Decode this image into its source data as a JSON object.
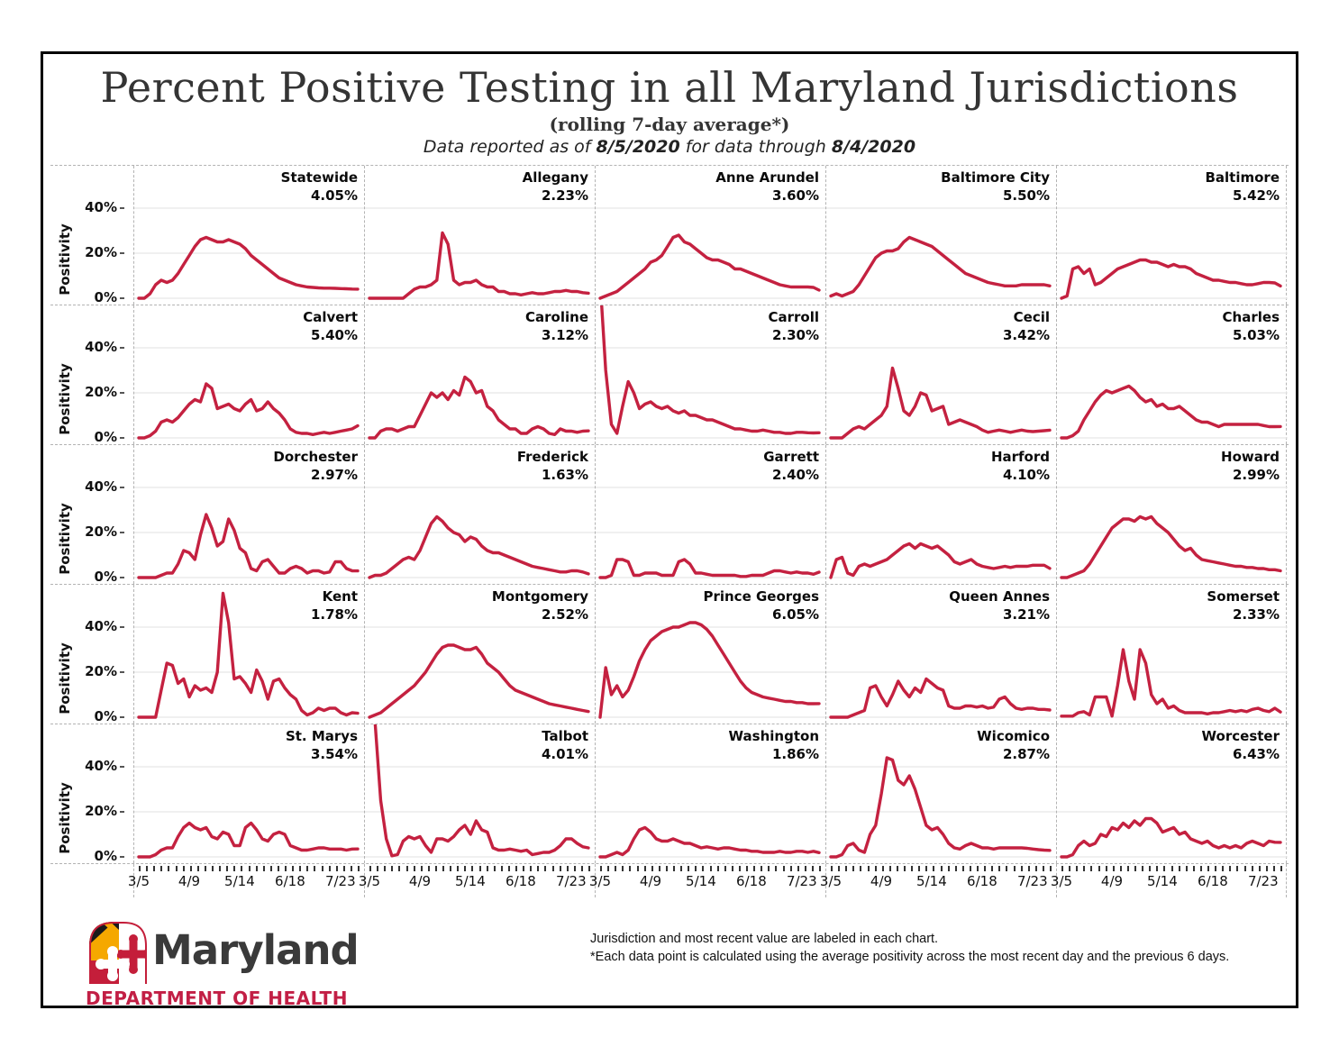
{
  "header": {
    "title": "Percent Positive Testing in all Maryland Jurisdictions",
    "subtitle": "(rolling 7-day average*)",
    "info": {
      "prefix": "Data reported as of ",
      "report_date": "8/5/2020",
      "middle": " for data through ",
      "through_date": "8/4/2020"
    }
  },
  "axis": {
    "y_label": "Positivity",
    "y_ticks": [
      "40%",
      "20%",
      "0%"
    ],
    "x_ticks": [
      "3/5",
      "4/9",
      "5/14",
      "6/18",
      "7/23"
    ]
  },
  "footer": {
    "note1": "Jurisdiction and most recent value are labeled in each chart.",
    "note2": "*Each data point is calculated using the average positivity across the most recent day and the previous 6 days.",
    "logo_name": "Maryland",
    "logo_dept": "DEPARTMENT OF HEALTH"
  },
  "colors": {
    "line": "#C42140",
    "gridline": "#ececec",
    "dashed_border": "#b3b3b3",
    "title_text": "#343434",
    "logo_gold": "#F5A800",
    "logo_red": "#C41E3A",
    "logo_dept_red": "#C21F45"
  },
  "chart_data": {
    "type": "line",
    "title": "Percent Positive Testing in all Maryland Jurisdictions (rolling 7-day average)",
    "ylabel": "Positivity",
    "ylim": [
      0,
      58
    ],
    "y_gridlines_pct": [
      0,
      20,
      40
    ],
    "x_tick_labels": [
      "3/5",
      "4/9",
      "5/14",
      "6/18",
      "7/23"
    ],
    "x_tick_days": [
      0,
      35,
      70,
      105,
      140
    ],
    "x_total_days": 152,
    "minor_ticks": 31,
    "grid_cols": 5,
    "series": [
      {
        "name": "Statewide",
        "value_label": "4.05%",
        "values": [
          0,
          0,
          2,
          6,
          8,
          7,
          8,
          11,
          15,
          19,
          23,
          26,
          27,
          26,
          25,
          25,
          26,
          25,
          24,
          22,
          19,
          17,
          15,
          13,
          11,
          9,
          8,
          7,
          6,
          5.5,
          5,
          4.8,
          4.6,
          4.5,
          4.5,
          4.4,
          4.3,
          4.2,
          4.1,
          4.05
        ]
      },
      {
        "name": "Allegany",
        "value_label": "2.23%",
        "values": [
          0,
          0,
          0,
          0,
          0,
          0,
          0,
          2,
          4,
          5,
          5,
          6,
          8,
          29,
          24,
          8,
          6,
          7,
          7,
          8,
          6,
          5,
          5,
          3,
          3,
          2,
          2,
          1.5,
          2,
          2.5,
          2,
          2,
          2.5,
          3,
          3,
          3.5,
          3,
          3,
          2.5,
          2.23
        ]
      },
      {
        "name": "Anne Arundel",
        "value_label": "3.60%",
        "values": [
          0,
          1,
          2,
          3,
          5,
          7,
          9,
          11,
          13,
          16,
          17,
          19,
          23,
          27,
          28,
          25,
          24,
          22,
          20,
          18,
          17,
          17,
          16,
          15,
          13,
          13,
          12,
          11,
          10,
          9,
          8,
          7,
          6,
          5.5,
          5,
          5,
          5,
          5,
          4.8,
          3.6
        ]
      },
      {
        "name": "Baltimore City",
        "value_label": "5.50%",
        "values": [
          1,
          2,
          1,
          2,
          3,
          6,
          10,
          14,
          18,
          20,
          21,
          21,
          22,
          25,
          27,
          26,
          25,
          24,
          23,
          21,
          19,
          17,
          15,
          13,
          11,
          10,
          9,
          8,
          7,
          6.5,
          6,
          5.5,
          5.5,
          5.5,
          6,
          6,
          6,
          6,
          6,
          5.5
        ]
      },
      {
        "name": "Baltimore",
        "value_label": "5.42%",
        "values": [
          0,
          1,
          13,
          14,
          11,
          13,
          6,
          7,
          9,
          11,
          13,
          14,
          15,
          16,
          17,
          17,
          16,
          16,
          15,
          14,
          15,
          14,
          14,
          13,
          11,
          10,
          9,
          8,
          8,
          7.5,
          7,
          7,
          6.5,
          6,
          6,
          6.5,
          7,
          7,
          6.8,
          5.42
        ]
      },
      {
        "name": "Calvert",
        "value_label": "5.40%",
        "values": [
          0,
          0,
          1,
          3,
          7,
          8,
          7,
          9,
          12,
          15,
          17,
          16,
          24,
          22,
          13,
          14,
          15,
          13,
          12,
          15,
          17,
          12,
          13,
          16,
          13,
          11,
          8,
          4,
          2.5,
          2,
          2,
          1.5,
          2,
          2.5,
          2,
          2.5,
          3,
          3.5,
          4,
          5.4
        ]
      },
      {
        "name": "Caroline",
        "value_label": "3.12%",
        "values": [
          0,
          0,
          3,
          4,
          4,
          3,
          4,
          5,
          5,
          10,
          15,
          20,
          18,
          20,
          17,
          21,
          19,
          27,
          25,
          20,
          21,
          14,
          12,
          8,
          6,
          4,
          4,
          2,
          2,
          4,
          5,
          4,
          2,
          1.5,
          4,
          3,
          3,
          2.5,
          3,
          3.12
        ]
      },
      {
        "name": "Carroll",
        "value_label": "2.30%",
        "values": [
          70,
          30,
          6,
          2,
          14,
          25,
          20,
          13,
          15,
          16,
          14,
          13,
          14,
          12,
          11,
          12,
          10,
          10,
          9,
          8,
          8,
          7,
          6,
          5,
          4,
          4,
          3.5,
          3,
          3,
          3.5,
          3,
          2.5,
          2.5,
          2,
          2,
          2.5,
          2.5,
          2.3,
          2.2,
          2.3
        ]
      },
      {
        "name": "Cecil",
        "value_label": "3.42%",
        "values": [
          0,
          0,
          0,
          2,
          4,
          5,
          4,
          6,
          8,
          10,
          14,
          31,
          22,
          12,
          10,
          14,
          20,
          19,
          12,
          13,
          14,
          6,
          7,
          8,
          7,
          6,
          5,
          3.5,
          2.5,
          3,
          3.5,
          3,
          2.5,
          3,
          3.5,
          3,
          2.8,
          3,
          3.2,
          3.42
        ]
      },
      {
        "name": "Charles",
        "value_label": "5.03%",
        "values": [
          0,
          0,
          1,
          3,
          8,
          12,
          16,
          19,
          21,
          20,
          21,
          22,
          23,
          21,
          18,
          16,
          17,
          14,
          15,
          13,
          13,
          14,
          12,
          10,
          8,
          7,
          7,
          6,
          5,
          6,
          6,
          6,
          6,
          6,
          6,
          6,
          5.5,
          5,
          5,
          5.03
        ]
      },
      {
        "name": "Dorchester",
        "value_label": "2.97%",
        "values": [
          0,
          0,
          0,
          0,
          1,
          2,
          2,
          6,
          12,
          11,
          8,
          19,
          28,
          22,
          14,
          16,
          26,
          21,
          13,
          11,
          4,
          3,
          7,
          8,
          5,
          2,
          2,
          4,
          5,
          4,
          2,
          3,
          3,
          2,
          2.5,
          7,
          7,
          4,
          3,
          2.97
        ]
      },
      {
        "name": "Frederick",
        "value_label": "1.63%",
        "values": [
          0,
          1,
          1,
          2,
          4,
          6,
          8,
          9,
          8,
          12,
          18,
          24,
          27,
          25,
          22,
          20,
          19,
          16,
          18,
          17,
          14,
          12,
          11,
          11,
          10,
          9,
          8,
          7,
          6,
          5,
          4.5,
          4,
          3.5,
          3,
          2.5,
          2.5,
          3,
          3,
          2.5,
          1.63
        ]
      },
      {
        "name": "Garrett",
        "value_label": "2.40%",
        "values": [
          0,
          0,
          1,
          8,
          8,
          7,
          1,
          1,
          2,
          2,
          2,
          1,
          1,
          1,
          7,
          8,
          6,
          2,
          2,
          1.5,
          1,
          1,
          1,
          1,
          1,
          0.5,
          0.5,
          1,
          1,
          1,
          2,
          3,
          3,
          2.5,
          2,
          2.5,
          2,
          2,
          1.5,
          2.4
        ]
      },
      {
        "name": "Harford",
        "value_label": "4.10%",
        "values": [
          0,
          8,
          9,
          2,
          1,
          5,
          6,
          5,
          6,
          7,
          8,
          10,
          12,
          14,
          15,
          13,
          15,
          14,
          13,
          14,
          12,
          10,
          7,
          6,
          7,
          8,
          6,
          5,
          4.5,
          4,
          4.5,
          5,
          4.5,
          5,
          5,
          5,
          5.5,
          5.5,
          5.5,
          4.1
        ]
      },
      {
        "name": "Howard",
        "value_label": "2.99%",
        "values": [
          0,
          0,
          1,
          2,
          3,
          6,
          10,
          14,
          18,
          22,
          24,
          26,
          26,
          25,
          27,
          26,
          27,
          24,
          22,
          20,
          17,
          14,
          12,
          13,
          10,
          8,
          7.5,
          7,
          6.5,
          6,
          5.5,
          5,
          5,
          4.5,
          4.5,
          4,
          4,
          3.5,
          3.5,
          2.99
        ]
      },
      {
        "name": "Kent",
        "value_label": "1.78%",
        "values": [
          0,
          0,
          0,
          0,
          12,
          24,
          23,
          15,
          17,
          9,
          14,
          12,
          13,
          11,
          20,
          55,
          42,
          17,
          18,
          15,
          11,
          21,
          16,
          8,
          16,
          17,
          13,
          10,
          8,
          3,
          1,
          2,
          4,
          3,
          4,
          4,
          2,
          1,
          2,
          1.78
        ]
      },
      {
        "name": "Montgomery",
        "value_label": "2.52%",
        "values": [
          0,
          1,
          2,
          4,
          6,
          8,
          10,
          12,
          14,
          17,
          20,
          24,
          28,
          31,
          32,
          32,
          31,
          30,
          30,
          31,
          28,
          24,
          22,
          20,
          17,
          14,
          12,
          11,
          10,
          9,
          8,
          7,
          6,
          5.5,
          5,
          4.5,
          4,
          3.5,
          3,
          2.52
        ]
      },
      {
        "name": "Prince Georges",
        "value_label": "6.05%",
        "values": [
          0,
          22,
          10,
          14,
          9,
          12,
          18,
          25,
          30,
          34,
          36,
          38,
          39,
          40,
          40,
          41,
          42,
          42,
          41,
          39,
          36,
          32,
          28,
          24,
          20,
          16,
          13,
          11,
          10,
          9,
          8.5,
          8,
          7.5,
          7,
          7,
          6.5,
          6.5,
          6,
          6,
          6.05
        ]
      },
      {
        "name": "Queen Annes",
        "value_label": "3.21%",
        "values": [
          0,
          0,
          0,
          0,
          1,
          2,
          3,
          13,
          14,
          9,
          5,
          10,
          16,
          12,
          9,
          13,
          11,
          17,
          15,
          13,
          12,
          5,
          4,
          4,
          5,
          5,
          4.5,
          5,
          4,
          4.5,
          8,
          9,
          6,
          4,
          3.5,
          4,
          4,
          3.5,
          3.5,
          3.21
        ]
      },
      {
        "name": "Somerset",
        "value_label": "2.33%",
        "values": [
          0.5,
          0.5,
          0.5,
          2,
          2.5,
          1,
          9,
          9,
          9,
          0.5,
          14,
          30,
          16,
          8,
          30,
          24,
          10,
          6,
          8,
          4,
          5,
          3,
          2,
          2,
          2,
          2,
          1.5,
          2,
          2,
          2.5,
          3,
          2.5,
          3,
          2.5,
          3.5,
          4,
          3,
          2.5,
          4,
          2.33
        ]
      },
      {
        "name": "St. Marys",
        "value_label": "3.54%",
        "values": [
          0,
          0,
          0,
          1,
          3,
          4,
          4,
          9,
          13,
          15,
          13,
          12,
          13,
          9,
          8,
          11,
          10,
          5,
          5,
          13,
          15,
          12,
          8,
          7,
          10,
          11,
          10,
          5,
          4,
          3,
          3,
          3.5,
          4,
          4,
          3.5,
          3.5,
          3.5,
          3,
          3.5,
          3.54
        ]
      },
      {
        "name": "Talbot",
        "value_label": "4.01%",
        "values": [
          75,
          60,
          25,
          8,
          0.5,
          1,
          7,
          9,
          8,
          9,
          5,
          2,
          8,
          8,
          7,
          9,
          12,
          14,
          10,
          16,
          12,
          11,
          4,
          3,
          3,
          3.5,
          3,
          2.5,
          3,
          1,
          1.5,
          2,
          2,
          3,
          5,
          8,
          8,
          6,
          4.5,
          4.01
        ]
      },
      {
        "name": "Washington",
        "value_label": "1.86%",
        "values": [
          0,
          0,
          1,
          2,
          1,
          3,
          8,
          12,
          13,
          11,
          8,
          7,
          7,
          8,
          7,
          6,
          6,
          5,
          4,
          4.5,
          4,
          3.5,
          4,
          4,
          3.5,
          3,
          3,
          2.5,
          2.5,
          2,
          2,
          2,
          2.5,
          2,
          2,
          2.5,
          2.5,
          2,
          2.5,
          1.86
        ]
      },
      {
        "name": "Wicomico",
        "value_label": "2.87%",
        "values": [
          0,
          0,
          1,
          5,
          6,
          3,
          2,
          10,
          14,
          28,
          44,
          43,
          34,
          32,
          36,
          30,
          22,
          14,
          12,
          13,
          10,
          6,
          4,
          3.5,
          5,
          6,
          5,
          4,
          4,
          3.5,
          4,
          4,
          4,
          4,
          4,
          3.8,
          3.5,
          3.2,
          3,
          2.87
        ]
      },
      {
        "name": "Worcester",
        "value_label": "6.43%",
        "values": [
          0,
          0,
          1,
          5,
          7,
          5,
          6,
          10,
          9,
          13,
          12,
          15,
          13,
          16,
          14,
          17,
          17,
          15,
          11,
          12,
          13,
          10,
          11,
          8,
          7,
          6,
          7,
          5,
          4,
          5,
          4,
          5,
          4,
          6,
          7,
          6,
          5,
          7,
          6.5,
          6.43
        ]
      }
    ]
  }
}
